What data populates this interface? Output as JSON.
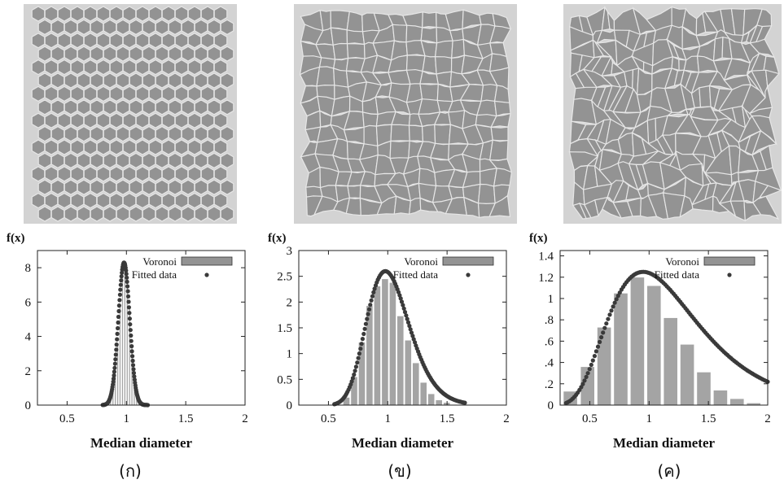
{
  "colors": {
    "cell": "#939393",
    "border": "#e6e6e6",
    "background": "#d3d3d3",
    "bar": "#a4a4a4",
    "fit": "#3a3a3a"
  },
  "panels": [
    {
      "caption": "(ก)",
      "tessellation": {
        "type": "hexagonal",
        "cols": 15,
        "rows": 15
      },
      "chart_data": {
        "type": "bar",
        "xlabel": "Median diameter",
        "ylabel": "f(x)",
        "xlim": [
          0.25,
          2.0
        ],
        "ylim": [
          0,
          9
        ],
        "xticks": [
          "0.5",
          "1",
          "1.5",
          "2"
        ],
        "yticks": [
          "0",
          "2",
          "4",
          "6",
          "8"
        ],
        "yticks_values": [
          0,
          2,
          4,
          6,
          8
        ],
        "xticks_values": [
          0.5,
          1,
          1.5,
          2
        ],
        "legend": [
          "Voronoi",
          "Fitted data"
        ],
        "legend_position": "top-right",
        "bar_width": 0.02,
        "bars_x": [
          0.87,
          0.89,
          0.91,
          0.93,
          0.95,
          0.97,
          0.99,
          1.01,
          1.03,
          1.05,
          1.07,
          1.09,
          1.11
        ],
        "bars_y": [
          0.3,
          0.8,
          1.8,
          3.6,
          5.8,
          7.6,
          8.2,
          7.4,
          5.6,
          3.4,
          1.7,
          0.7,
          0.25
        ],
        "fit": {
          "mu": 0.98,
          "sigma": 0.048,
          "scale": 1.0,
          "peak": 8.3,
          "x_range": [
            0.8,
            1.18
          ]
        }
      }
    },
    {
      "caption": "(ข)",
      "tessellation": {
        "type": "perturbed",
        "cols": 14,
        "rows": 14,
        "jitter": 0.28
      },
      "chart_data": {
        "type": "bar",
        "xlabel": "Median diameter",
        "ylabel": "f(x)",
        "xlim": [
          0.25,
          2.0
        ],
        "ylim": [
          0,
          3
        ],
        "xticks": [
          "0.5",
          "1",
          "1.5",
          "2"
        ],
        "yticks": [
          "0",
          "0.5",
          "1",
          "1.5",
          "2",
          "2.5",
          "3"
        ],
        "yticks_values": [
          0,
          0.5,
          1,
          1.5,
          2,
          2.5,
          3
        ],
        "xticks_values": [
          0.5,
          1,
          1.5,
          2
        ],
        "legend": [
          "Voronoi",
          "Fitted data"
        ],
        "legend_position": "top-right",
        "bar_width": 0.063,
        "bars_x": [
          0.655,
          0.72,
          0.785,
          0.85,
          0.915,
          0.98,
          1.045,
          1.11,
          1.175,
          1.24,
          1.305,
          1.37,
          1.435,
          1.5
        ],
        "bars_y": [
          0.15,
          0.55,
          1.22,
          1.93,
          2.31,
          2.45,
          2.38,
          1.73,
          1.26,
          0.82,
          0.44,
          0.22,
          0.1,
          0.05
        ],
        "fit": {
          "mu": 0.98,
          "sigma": 0.16,
          "peak": 2.6,
          "lognormal": true,
          "x_range": [
            0.55,
            1.65
          ]
        }
      }
    },
    {
      "caption": "(ค)",
      "tessellation": {
        "type": "random",
        "cols": 13,
        "rows": 13,
        "jitter": 0.48
      },
      "chart_data": {
        "type": "bar",
        "xlabel": "Median diameter",
        "ylabel": "f(x)",
        "xlim": [
          0.25,
          2.0
        ],
        "ylim": [
          0,
          1.45
        ],
        "xticks": [
          "0.5",
          "1",
          "1.5",
          "2"
        ],
        "yticks": [
          "0",
          ".2",
          ".4",
          ".6",
          ".8",
          "1",
          "1.2",
          "1.4"
        ],
        "yticks_values": [
          0,
          0.2,
          0.4,
          0.6,
          0.8,
          1.0,
          1.2,
          1.4
        ],
        "xticks_values": [
          0.5,
          1,
          1.5,
          2
        ],
        "legend": [
          "Voronoi",
          "Fitted data"
        ],
        "legend_position": "top-right",
        "bar_width": 0.125,
        "bars_x": [
          0.34,
          0.485,
          0.625,
          0.765,
          0.905,
          1.045,
          1.185,
          1.325,
          1.465,
          1.605,
          1.745,
          1.885
        ],
        "bars_y": [
          0.13,
          0.36,
          0.73,
          1.05,
          1.2,
          1.12,
          0.82,
          0.57,
          0.31,
          0.14,
          0.06,
          0.02
        ],
        "fit": {
          "mu": 0.95,
          "sigma": 0.36,
          "peak": 1.25,
          "lognormal": true,
          "x_range": [
            0.3,
            2.0
          ]
        }
      }
    }
  ]
}
